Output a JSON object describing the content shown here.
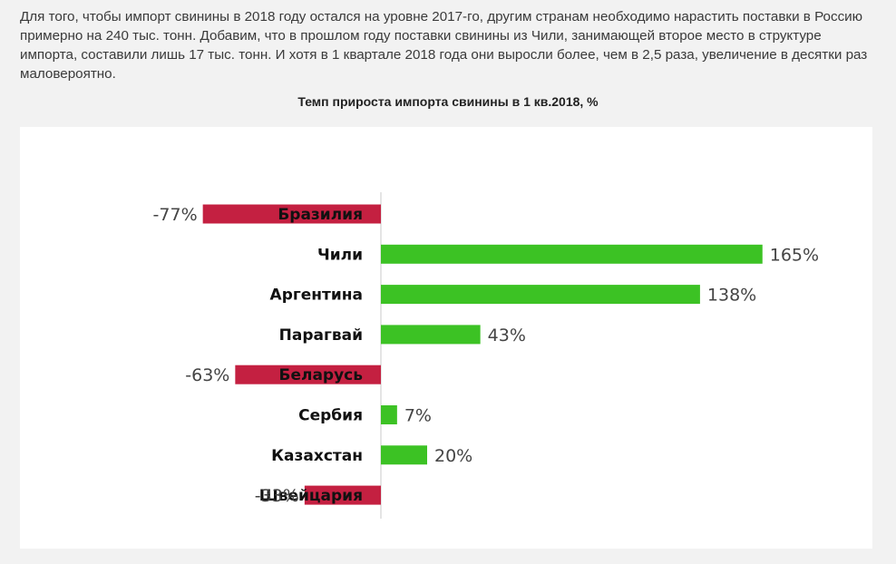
{
  "article": {
    "paragraph": "Для того, чтобы импорт свинины в 2018 году остался на уровне 2017-го, другим странам необходимо нарастить поставки в Россию примерно на 240 тыс. тонн. Добавим, что в прошлом году поставки свинины из Чили, занимающей второе место в структуре импорта, составили лишь 17 тыс. тонн. И хотя в 1 квартале 2018 года они выросли более, чем в 2,5 раза, увеличение в десятки раз маловероятно."
  },
  "chart_data": {
    "type": "bar",
    "orientation": "horizontal",
    "title": "Темп прироста импорта свинины в 1 кв.2018, %",
    "categories": [
      "Бразилия",
      "Чили",
      "Аргентина",
      "Парагвай",
      "Беларусь",
      "Сербия",
      "Казахстан",
      "Швейцария"
    ],
    "values": [
      -77,
      165,
      138,
      43,
      -63,
      7,
      20,
      -33
    ],
    "value_labels": [
      "-77%",
      "165%",
      "138%",
      "43%",
      "-63%",
      "7%",
      "20%",
      "-33%"
    ],
    "xlim": [
      -77,
      165
    ],
    "grid": false,
    "legend": "none",
    "colors": {
      "positive": "#3cc224",
      "negative": "#c42041",
      "axis": "#c8c8c8"
    }
  }
}
